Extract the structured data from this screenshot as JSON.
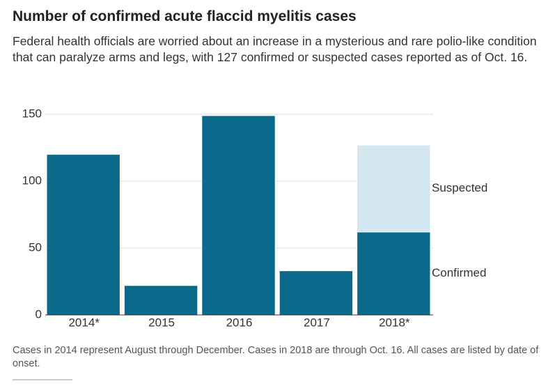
{
  "chart_data": {
    "type": "stacked-bar",
    "title": "Number of confirmed acute flaccid myelitis cases",
    "subtitle": "Federal health officials are worried about an increase in a mysterious and rare polio-like condition that can paralyze arms and legs, with 127 confirmed or suspected cases reported as of Oct. 16.",
    "note": "Cases in 2014 represent August through December. Cases in 2018 are through Oct. 16. All cases are listed by date of onset.",
    "categories": [
      "2014*",
      "2015",
      "2016",
      "2017",
      "2018*"
    ],
    "series": [
      {
        "name": "Confirmed",
        "color": "#0b6a8b",
        "values": [
          120,
          22,
          149,
          33,
          62
        ]
      },
      {
        "name": "Suspected",
        "color": "#d3e7f0",
        "values": [
          null,
          null,
          null,
          null,
          65
        ]
      }
    ],
    "ylim": [
      0,
      150
    ],
    "yticks": [
      0,
      50,
      100,
      150
    ],
    "grid": true
  }
}
